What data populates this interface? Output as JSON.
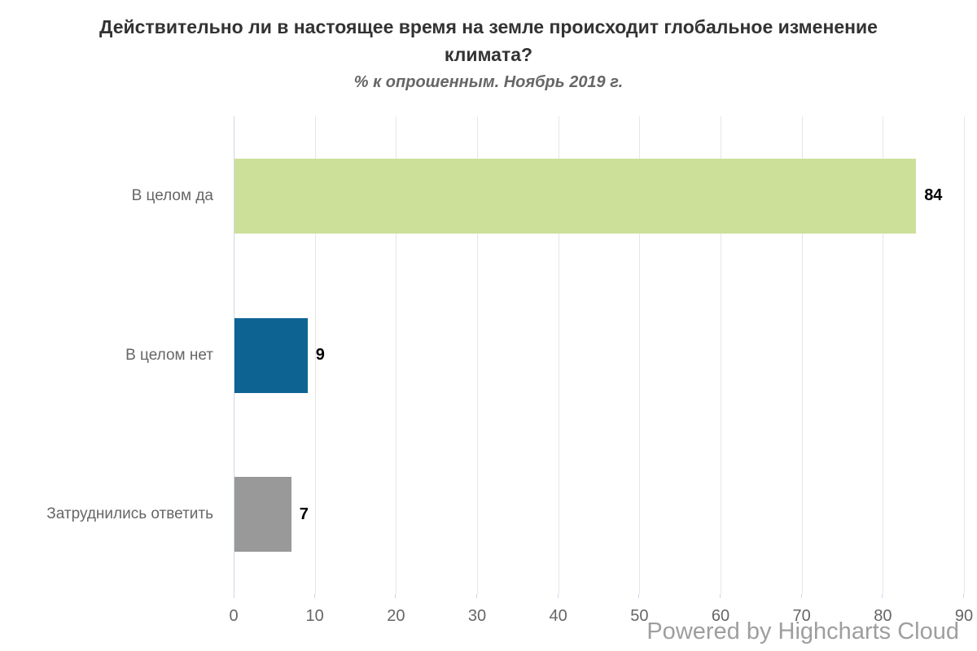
{
  "chart_data": {
    "type": "bar",
    "orientation": "horizontal",
    "title": "Действительно ли в настоящее время на земле происходит глобальное изменение климата?",
    "subtitle": "% к опрошенным. Ноябрь 2019 г.",
    "categories": [
      "В целом да",
      "В целом нет",
      "Затруднились ответить"
    ],
    "values": [
      84,
      9,
      7
    ],
    "bar_colors": [
      "#cde099",
      "#0d6493",
      "#999999"
    ],
    "data_labels": [
      "84",
      "9",
      "7"
    ],
    "xlabel": "",
    "ylabel": "",
    "axis_ticks": [
      "0",
      "10",
      "20",
      "30",
      "40",
      "50",
      "60",
      "70",
      "80",
      "90"
    ],
    "xlim": [
      0,
      90
    ],
    "grid": true,
    "legend": "none"
  },
  "colors": {
    "title": "#333333",
    "subtitle": "#666666",
    "axis_labels": "#666666",
    "category_labels": "#666666",
    "data_label": "#000000",
    "gridline": "#e6e6e6",
    "axis_line": "#ccd6eb",
    "credits": "#9e9e9e",
    "background": "#ffffff"
  },
  "credits": {
    "label": "Powered by Highcharts Cloud"
  }
}
